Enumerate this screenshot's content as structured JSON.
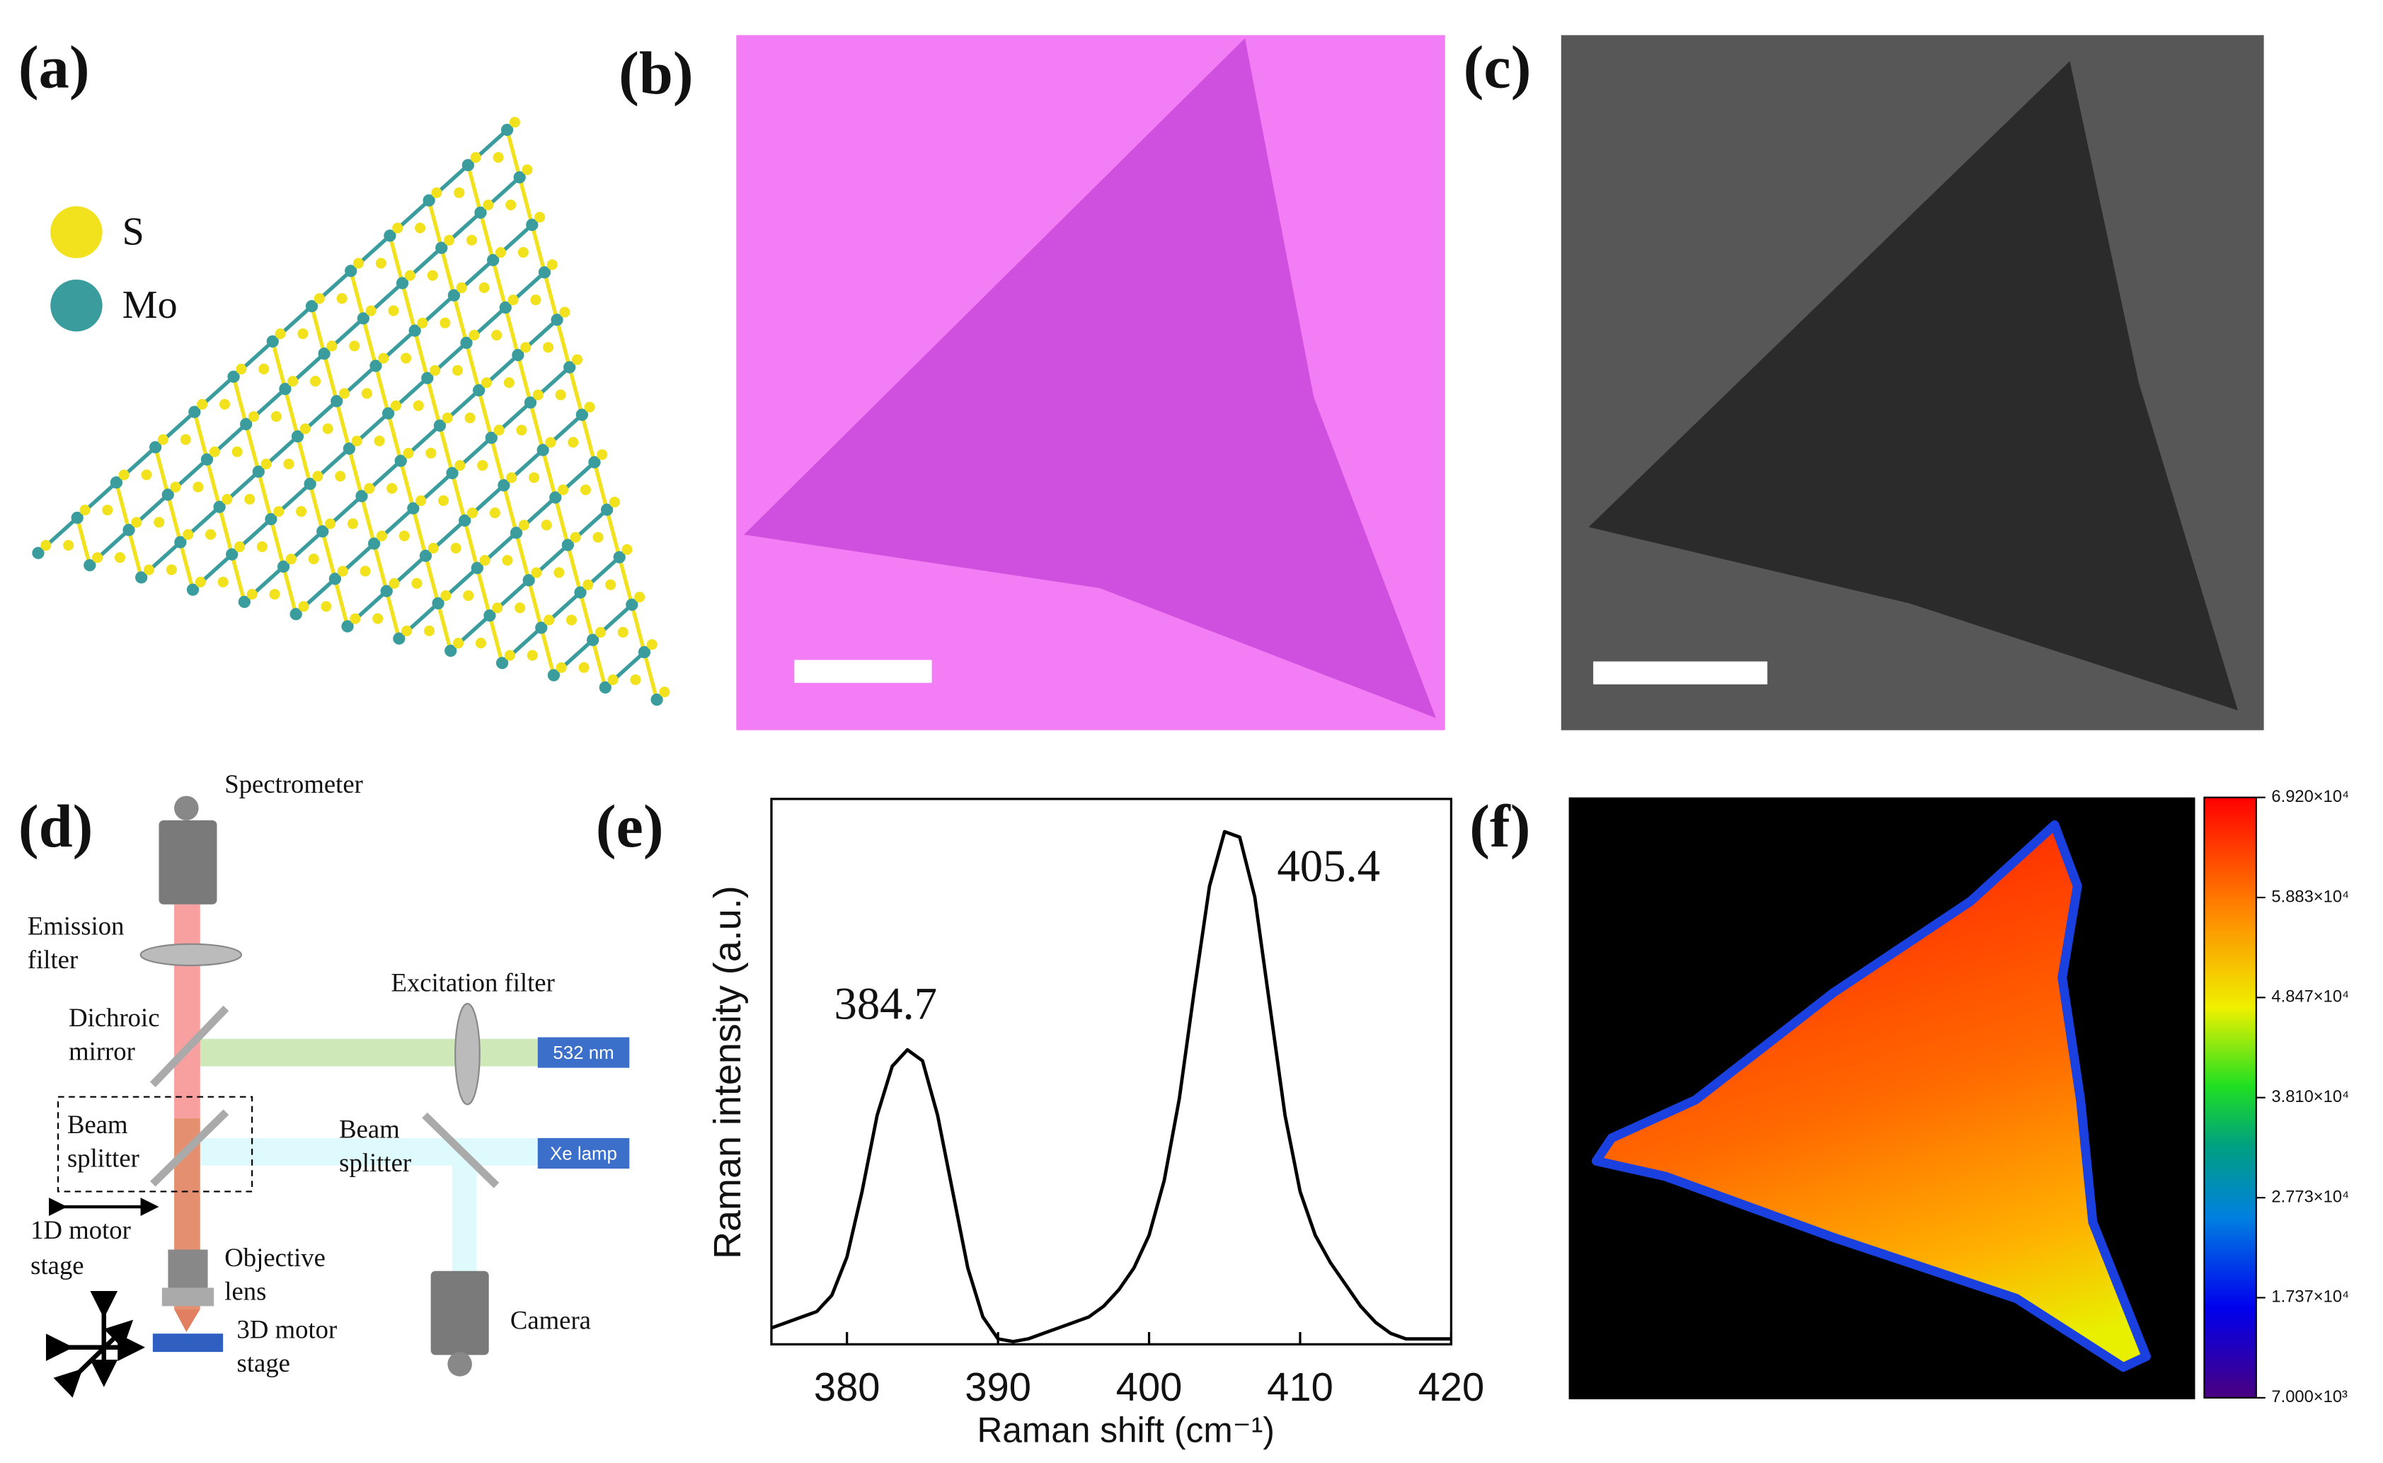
{
  "panels": [
    "(a)",
    "(b)",
    "(c)",
    "(d)",
    "(e)",
    "(f)"
  ],
  "legend": [
    {
      "label": "S",
      "color": "#f2e21e"
    },
    {
      "label": "Mo",
      "color": "#3a9c9c"
    }
  ],
  "diagram": {
    "spectrometer": [
      "Spectrometer"
    ],
    "emission_filter": [
      "Emission",
      "filter"
    ],
    "dichroic_mirror": [
      "Dichroic",
      "mirror"
    ],
    "excitation_filter": [
      "Excitation filter"
    ],
    "laser": [
      "532 nm"
    ],
    "beam_splitter_left": [
      "Beam",
      "splitter"
    ],
    "beam_splitter_right": [
      "Beam",
      "splitter"
    ],
    "lamp": [
      "Xe lamp"
    ],
    "motor_1d": [
      "1D motor",
      "stage"
    ],
    "objective": [
      "Objective",
      "lens"
    ],
    "motor_3d": [
      "3D motor",
      "stage"
    ],
    "camera": [
      "Camera"
    ]
  },
  "chart_data": {
    "type": "line",
    "xlabel": "Raman shift (cm⁻¹)",
    "ylabel": "Raman intensity (a.u.)",
    "annotations": [
      "384.7",
      "405.4"
    ],
    "x": [
      375,
      376,
      377,
      378,
      379,
      380,
      381,
      382,
      383,
      384,
      385,
      386,
      387,
      388,
      389,
      390,
      391,
      392,
      393,
      394,
      395,
      396,
      397,
      398,
      399,
      400,
      401,
      402,
      403,
      404,
      405,
      406,
      407,
      408,
      409,
      410,
      411,
      412,
      413,
      414,
      415,
      416,
      417,
      418,
      419,
      420
    ],
    "values": [
      0.03,
      0.04,
      0.05,
      0.06,
      0.09,
      0.16,
      0.28,
      0.42,
      0.51,
      0.54,
      0.52,
      0.42,
      0.28,
      0.14,
      0.05,
      0.01,
      0.005,
      0.01,
      0.02,
      0.03,
      0.04,
      0.05,
      0.07,
      0.1,
      0.14,
      0.2,
      0.3,
      0.45,
      0.65,
      0.84,
      0.94,
      0.93,
      0.82,
      0.62,
      0.42,
      0.28,
      0.2,
      0.15,
      0.11,
      0.07,
      0.04,
      0.02,
      0.01,
      0.01,
      0.01,
      0.01
    ],
    "color": "#000000",
    "xlim": [
      375,
      420
    ],
    "xticks": [
      380,
      390,
      400,
      410,
      420
    ],
    "ylim": [
      0,
      1
    ]
  },
  "colorbar": {
    "lim": [
      7000,
      69200
    ],
    "ticks": [
      {
        "value": 69200,
        "label": "6.920×10⁴"
      },
      {
        "value": 58830,
        "label": "5.883×10⁴"
      },
      {
        "value": 48470,
        "label": "4.847×10⁴"
      },
      {
        "value": 38100,
        "label": "3.810×10⁴"
      },
      {
        "value": 27730,
        "label": "2.773×10⁴"
      },
      {
        "value": 17370,
        "label": "1.737×10⁴"
      },
      {
        "value": 7000,
        "label": "7.000×10³"
      }
    ]
  }
}
